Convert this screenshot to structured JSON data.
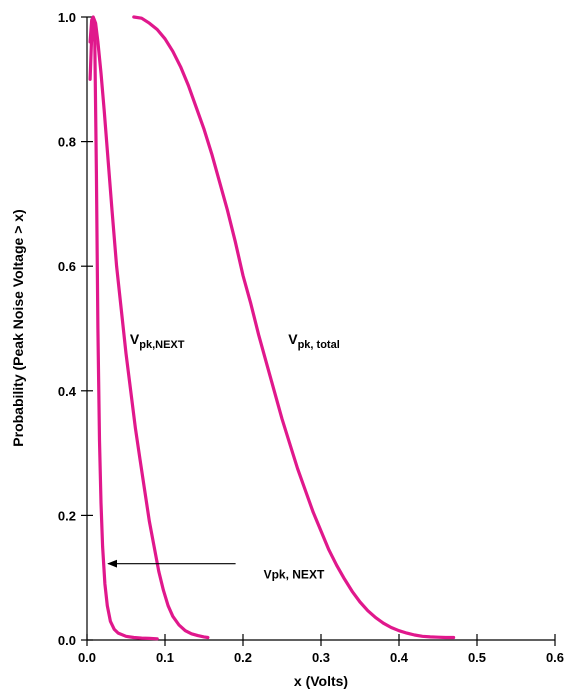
{
  "chart_data": {
    "type": "line",
    "title": "",
    "xlabel": "x (Volts)",
    "ylabel": "Probability (Peak Noise Voltage > x)",
    "xlim": [
      0,
      0.6
    ],
    "ylim": [
      0,
      1.0
    ],
    "x_ticks": [
      "0.0",
      "0.1",
      "0.2",
      "0.3",
      "0.4",
      "0.5",
      "0.6"
    ],
    "x_tick_values": [
      0,
      0.1,
      0.2,
      0.3,
      0.4,
      0.5,
      0.6
    ],
    "y_ticks": [
      "0.0",
      "0.2",
      "0.4",
      "0.6",
      "0.8",
      "1.0"
    ],
    "y_tick_values": [
      0,
      0.2,
      0.4,
      0.6,
      0.8,
      1.0
    ],
    "grid": false,
    "curve_color": "#e0188c",
    "series": [
      {
        "id": "inner",
        "label_main": "Vpk, NEXT",
        "label_sub": "",
        "label_at": [
          0.122,
          0.145
        ],
        "x": [
          0.004,
          0.006,
          0.008,
          0.01,
          0.012,
          0.014,
          0.016,
          0.018,
          0.02,
          0.023,
          0.026,
          0.03,
          0.035,
          0.04,
          0.05,
          0.06,
          0.07,
          0.08,
          0.09
        ],
        "y": [
          0.9,
          0.97,
          0.995,
          0.96,
          0.75,
          0.5,
          0.32,
          0.22,
          0.15,
          0.09,
          0.055,
          0.03,
          0.017,
          0.011,
          0.006,
          0.004,
          0.003,
          0.0025,
          0.002
        ]
      },
      {
        "id": "next",
        "label_main": "V",
        "label_sub": "pk,NEXT",
        "label_at": [
          0.055,
          0.475
        ],
        "x": [
          0.004,
          0.006,
          0.008,
          0.011,
          0.014,
          0.018,
          0.022,
          0.027,
          0.032,
          0.038,
          0.044,
          0.05,
          0.056,
          0.062,
          0.068,
          0.074,
          0.08,
          0.086,
          0.092,
          0.098,
          0.104,
          0.11,
          0.118,
          0.126,
          0.134,
          0.142,
          0.15,
          0.155
        ],
        "y": [
          0.96,
          0.995,
          1.0,
          0.99,
          0.96,
          0.91,
          0.85,
          0.77,
          0.69,
          0.6,
          0.53,
          0.46,
          0.4,
          0.34,
          0.29,
          0.24,
          0.19,
          0.15,
          0.11,
          0.08,
          0.055,
          0.038,
          0.024,
          0.015,
          0.01,
          0.007,
          0.005,
          0.004
        ]
      },
      {
        "id": "total",
        "label_main": "V",
        "label_sub": "pk, total",
        "label_at": [
          0.258,
          0.475
        ],
        "x": [
          0.06,
          0.07,
          0.08,
          0.09,
          0.1,
          0.11,
          0.12,
          0.13,
          0.14,
          0.15,
          0.16,
          0.17,
          0.18,
          0.19,
          0.2,
          0.21,
          0.22,
          0.23,
          0.24,
          0.25,
          0.26,
          0.27,
          0.28,
          0.29,
          0.3,
          0.31,
          0.32,
          0.33,
          0.34,
          0.35,
          0.36,
          0.37,
          0.38,
          0.39,
          0.4,
          0.41,
          0.42,
          0.43,
          0.44,
          0.45,
          0.46,
          0.47
        ],
        "y": [
          1.0,
          0.998,
          0.99,
          0.98,
          0.965,
          0.945,
          0.92,
          0.89,
          0.855,
          0.82,
          0.78,
          0.735,
          0.69,
          0.64,
          0.585,
          0.54,
          0.49,
          0.445,
          0.4,
          0.355,
          0.315,
          0.275,
          0.24,
          0.205,
          0.175,
          0.145,
          0.12,
          0.098,
          0.078,
          0.061,
          0.047,
          0.036,
          0.027,
          0.02,
          0.015,
          0.011,
          0.008,
          0.006,
          0.005,
          0.0045,
          0.004,
          0.004
        ]
      }
    ],
    "annotation": {
      "text": "Vpk, NEXT",
      "arrow_from": [
        0.12,
        0.145
      ],
      "arrow_to": [
        0.022,
        0.145
      ]
    }
  }
}
